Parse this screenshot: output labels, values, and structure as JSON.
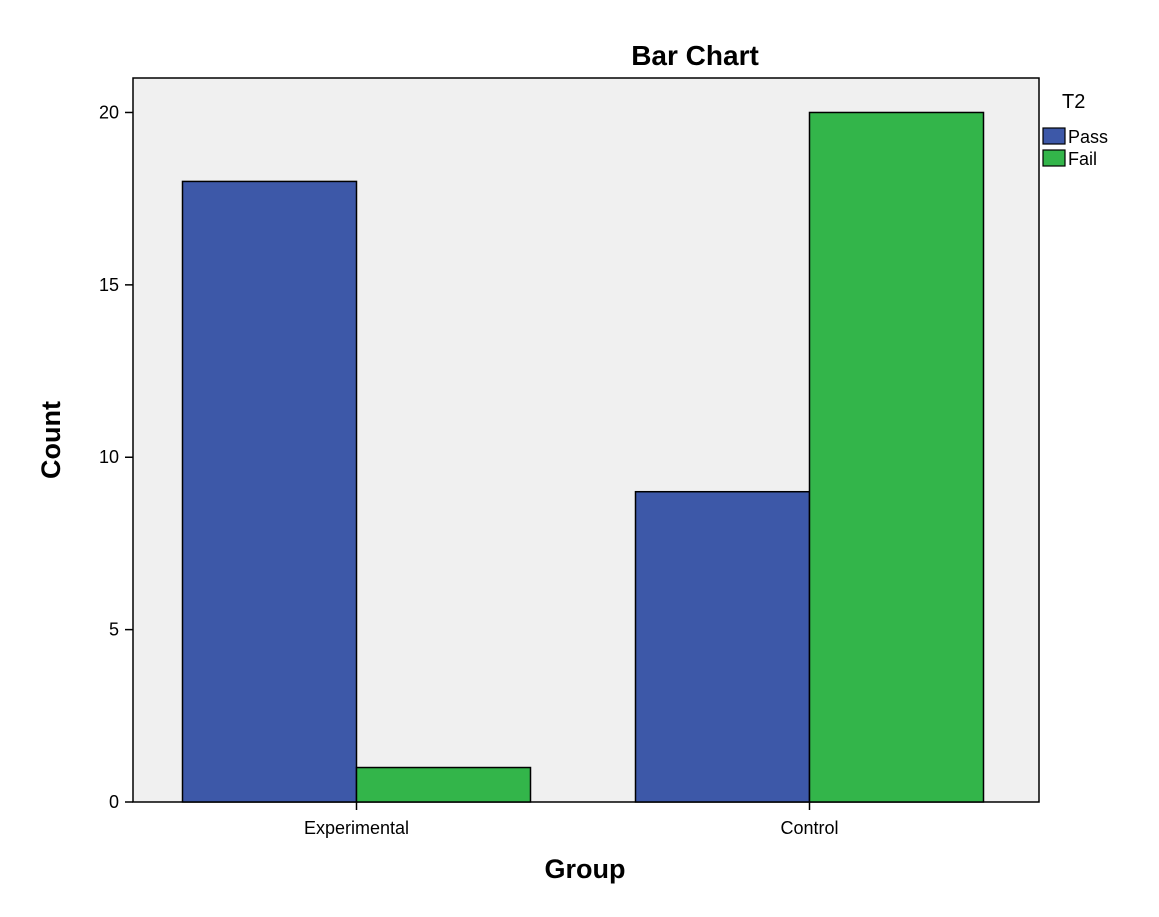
{
  "chart_data": {
    "type": "bar",
    "title": "Bar Chart",
    "xlabel": "Group",
    "ylabel": "Count",
    "categories": [
      "Experimental",
      "Control"
    ],
    "series": [
      {
        "name": "Pass",
        "values": [
          18,
          9
        ]
      },
      {
        "name": "Fail",
        "values": [
          1,
          20
        ]
      }
    ],
    "ylim": [
      0,
      21
    ],
    "yticks": [
      "0",
      "5",
      "10",
      "15",
      "20"
    ],
    "legend": {
      "title": "T2",
      "placement": "right"
    },
    "grid": false,
    "colors": {
      "Pass": "#3d58a8",
      "Fail": "#33b54a",
      "plot_background": "#f0f0f0"
    }
  }
}
